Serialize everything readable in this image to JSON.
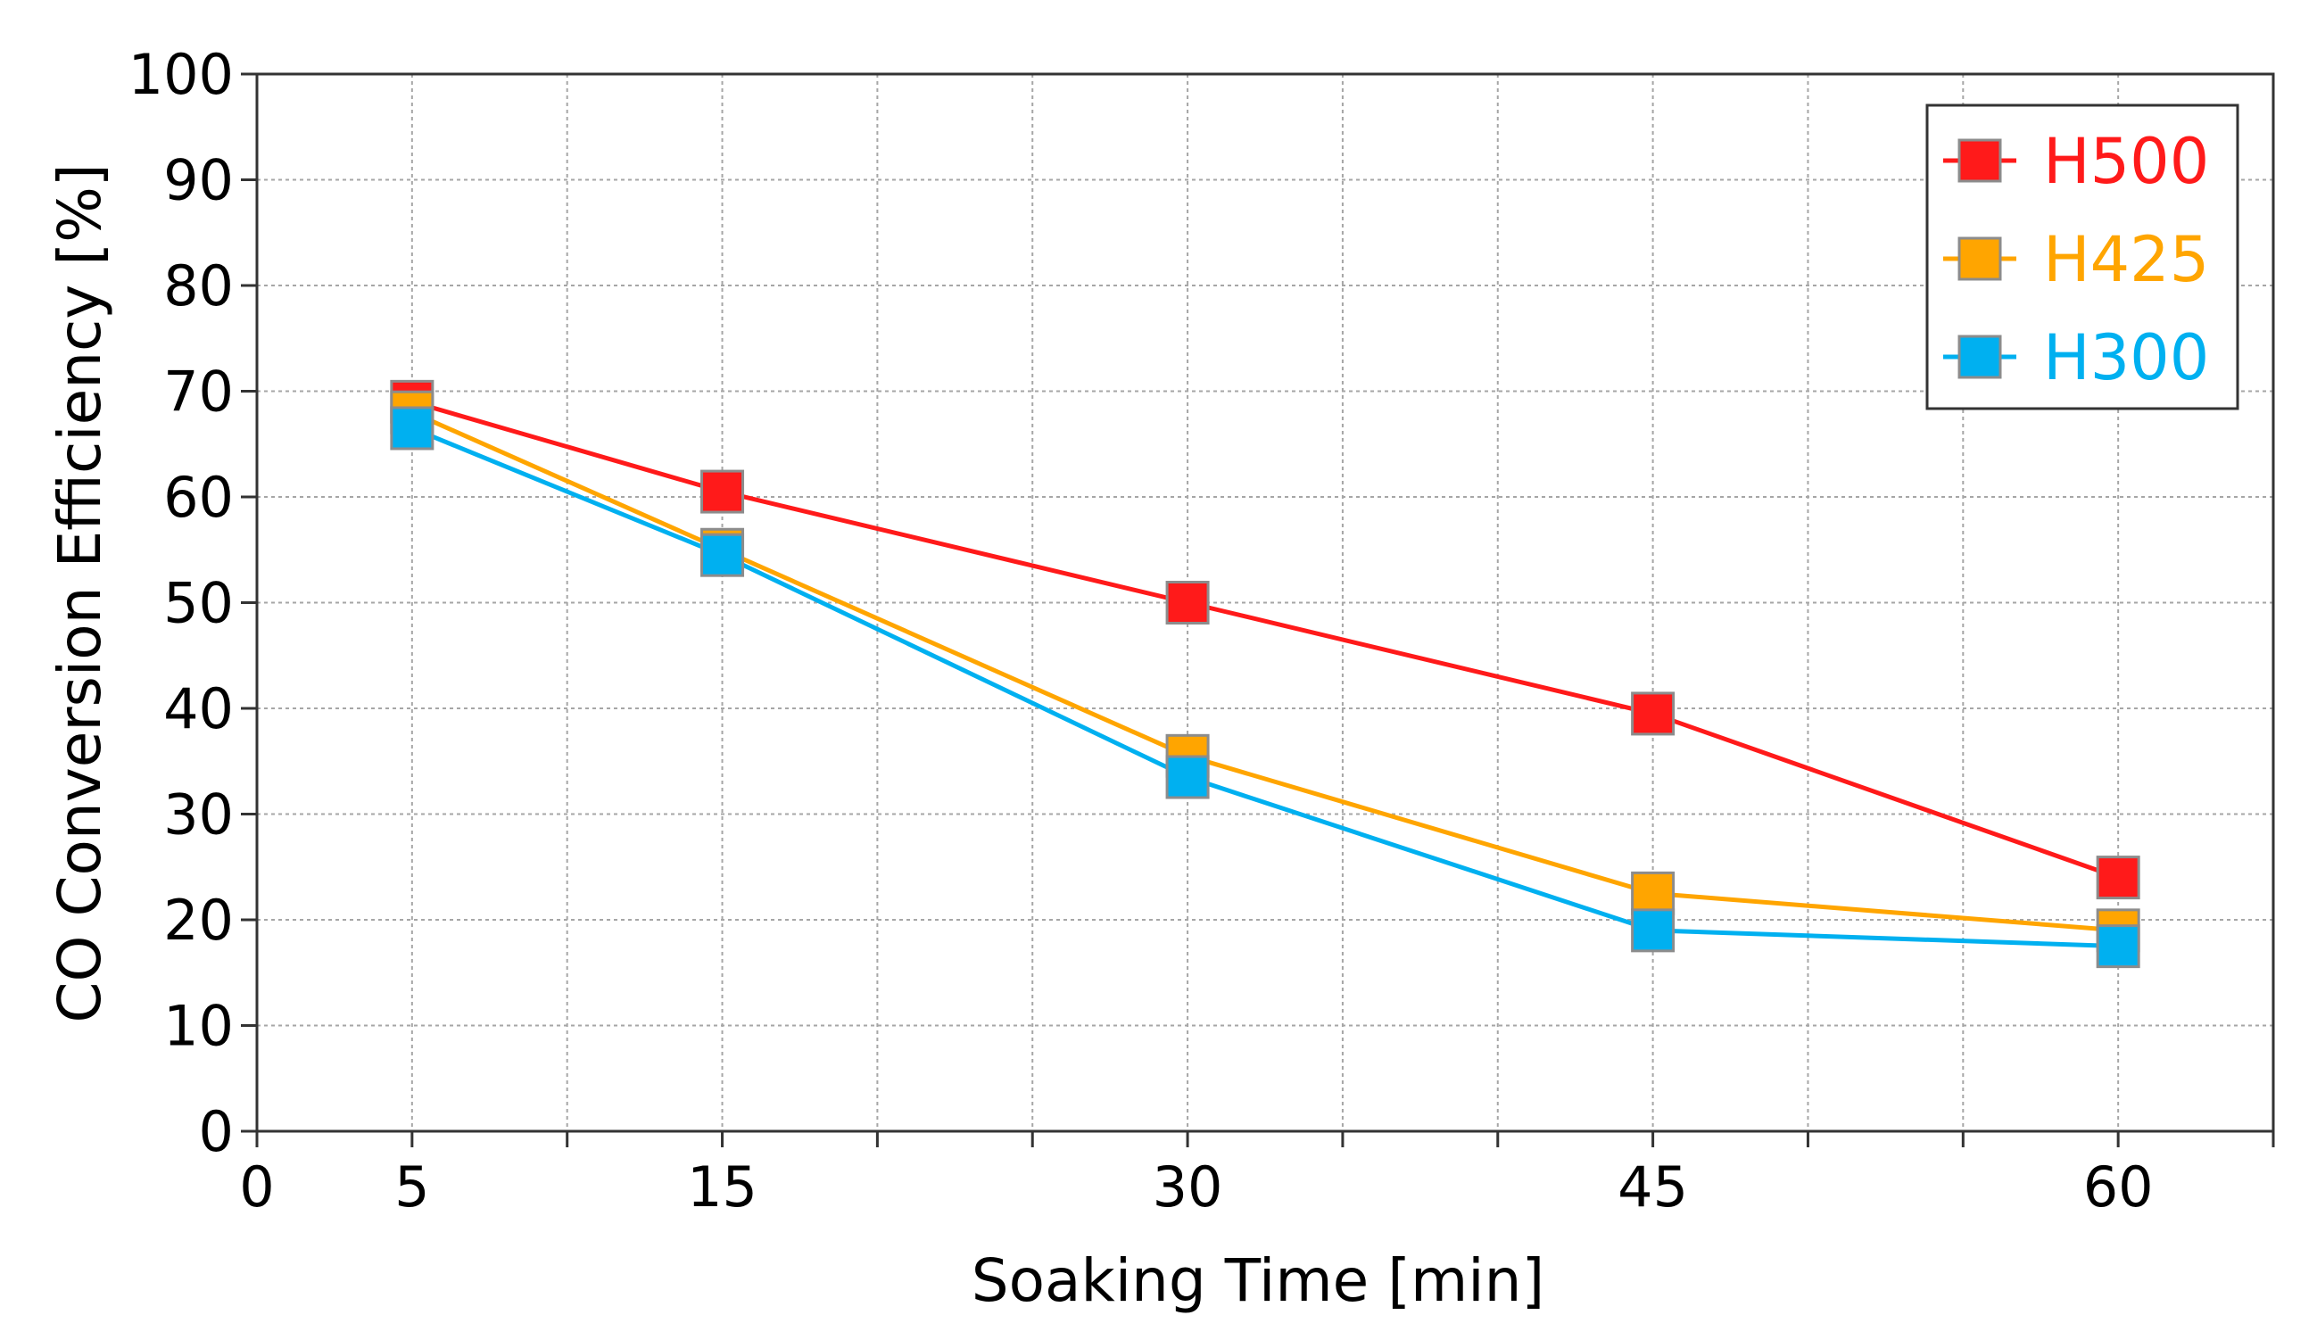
{
  "chart_data": {
    "type": "line",
    "title": "",
    "xlabel": "Soaking Time [min]",
    "ylabel": "CO Conversion Efficiency [%]",
    "xlim": [
      0,
      65
    ],
    "ylim": [
      0,
      100
    ],
    "x_minor_step": 5,
    "xticks": [
      0,
      5,
      15,
      30,
      45,
      60
    ],
    "yticks": [
      0,
      10,
      20,
      30,
      40,
      50,
      60,
      70,
      80,
      90,
      100
    ],
    "grid": true,
    "legend_position": "top-right",
    "x": [
      5,
      15,
      30,
      45,
      60
    ],
    "series": [
      {
        "name": "H500",
        "color": "#ff1a1a",
        "values": [
          69,
          60.5,
          50,
          39.5,
          24
        ]
      },
      {
        "name": "H425",
        "color": "#ffa500",
        "values": [
          68,
          55,
          35.5,
          22.5,
          19
        ]
      },
      {
        "name": "H300",
        "color": "#00b0f0",
        "values": [
          66.5,
          54.5,
          33.5,
          19,
          17.5
        ]
      }
    ]
  }
}
